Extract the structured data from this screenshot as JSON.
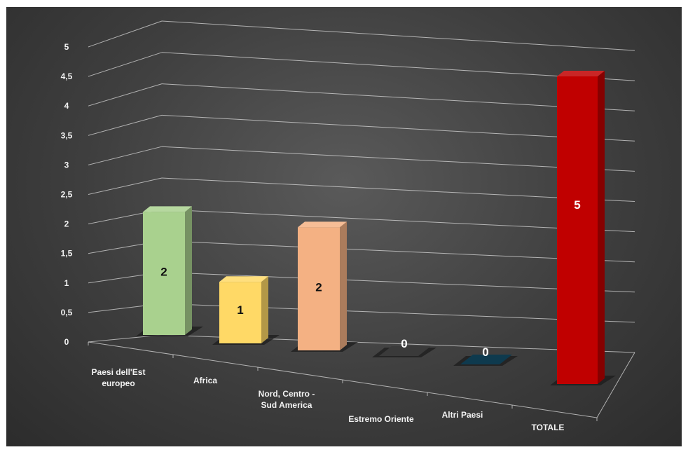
{
  "chart_data": {
    "type": "bar",
    "style": "3d-column",
    "categories": [
      [
        "Paesi dell'Est",
        "europeo"
      ],
      [
        "Africa"
      ],
      [
        "Nord, Centro -",
        "Sud America"
      ],
      [
        "Estremo Oriente"
      ],
      [
        "Altri Paesi"
      ],
      [
        "TOTALE"
      ]
    ],
    "values": [
      2,
      1,
      2,
      0,
      0,
      5
    ],
    "value_labels": [
      "2",
      "1",
      "2",
      "0",
      "0",
      "5"
    ],
    "colors": [
      "#a9d18e",
      "#ffd966",
      "#f4b183",
      "#3a3a3a",
      "#0e3a4e",
      "#c00000"
    ],
    "label_colors": [
      "#111111",
      "#111111",
      "#111111",
      "#ffffff",
      "#ffffff",
      "#ffffff"
    ],
    "ylim": [
      0,
      5
    ],
    "yticks": [
      "0",
      "0,5",
      "1",
      "1,5",
      "2",
      "2,5",
      "3",
      "3,5",
      "4",
      "4,5",
      "5"
    ],
    "title": "",
    "xlabel": "",
    "ylabel": "",
    "grid": true,
    "legend": "none",
    "background": "#3e3e3e"
  }
}
